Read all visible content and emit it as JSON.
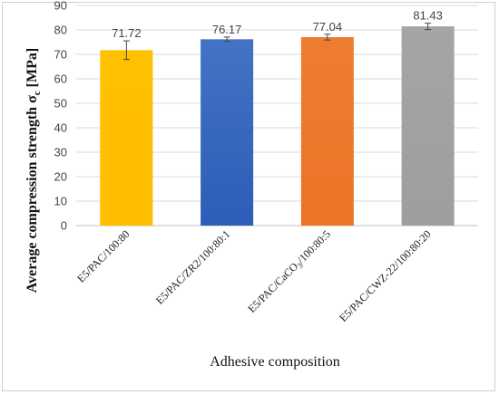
{
  "chart_data": {
    "type": "bar",
    "categories": [
      "E5/PAC/100:80",
      "E5/PAC/ZR2/100:80:1",
      "E5/PAC/CaCO3/100:80:5",
      "E5/PAC/CWZ-22/100:80:20"
    ],
    "category_labels": [
      {
        "pre": "E5/PAC/100:80",
        "sub": "",
        "post": ""
      },
      {
        "pre": "E5/PAC/ZR2/100:80:1",
        "sub": "",
        "post": ""
      },
      {
        "pre": "E5/PAC/CaCO",
        "sub": "3",
        "post": "/100:80:5"
      },
      {
        "pre": "E5/PAC/CWZ-22/100:80:20",
        "sub": "",
        "post": ""
      }
    ],
    "values": [
      71.72,
      76.17,
      77.04,
      81.43
    ],
    "data_labels": [
      "71.72",
      "76.17",
      "77.04",
      "81.43"
    ],
    "errors": [
      3.8,
      0.9,
      1.2,
      1.3
    ],
    "colors": [
      "#FFC000",
      "#4472C4",
      "#ED7D31",
      "#A5A5A5"
    ],
    "gradient_ends": [
      "#FFBE00",
      "#2C5DB8",
      "#EB7426",
      "#9E9E9E"
    ],
    "ylim": [
      0,
      90
    ],
    "yticks": [
      0,
      10,
      20,
      30,
      40,
      50,
      60,
      70,
      80,
      90
    ],
    "xlabel": "Adhesive composition",
    "ylabel": {
      "main": "Average compression strength σ",
      "sub": "c",
      "unit": " [MPa]"
    },
    "grid": true
  }
}
